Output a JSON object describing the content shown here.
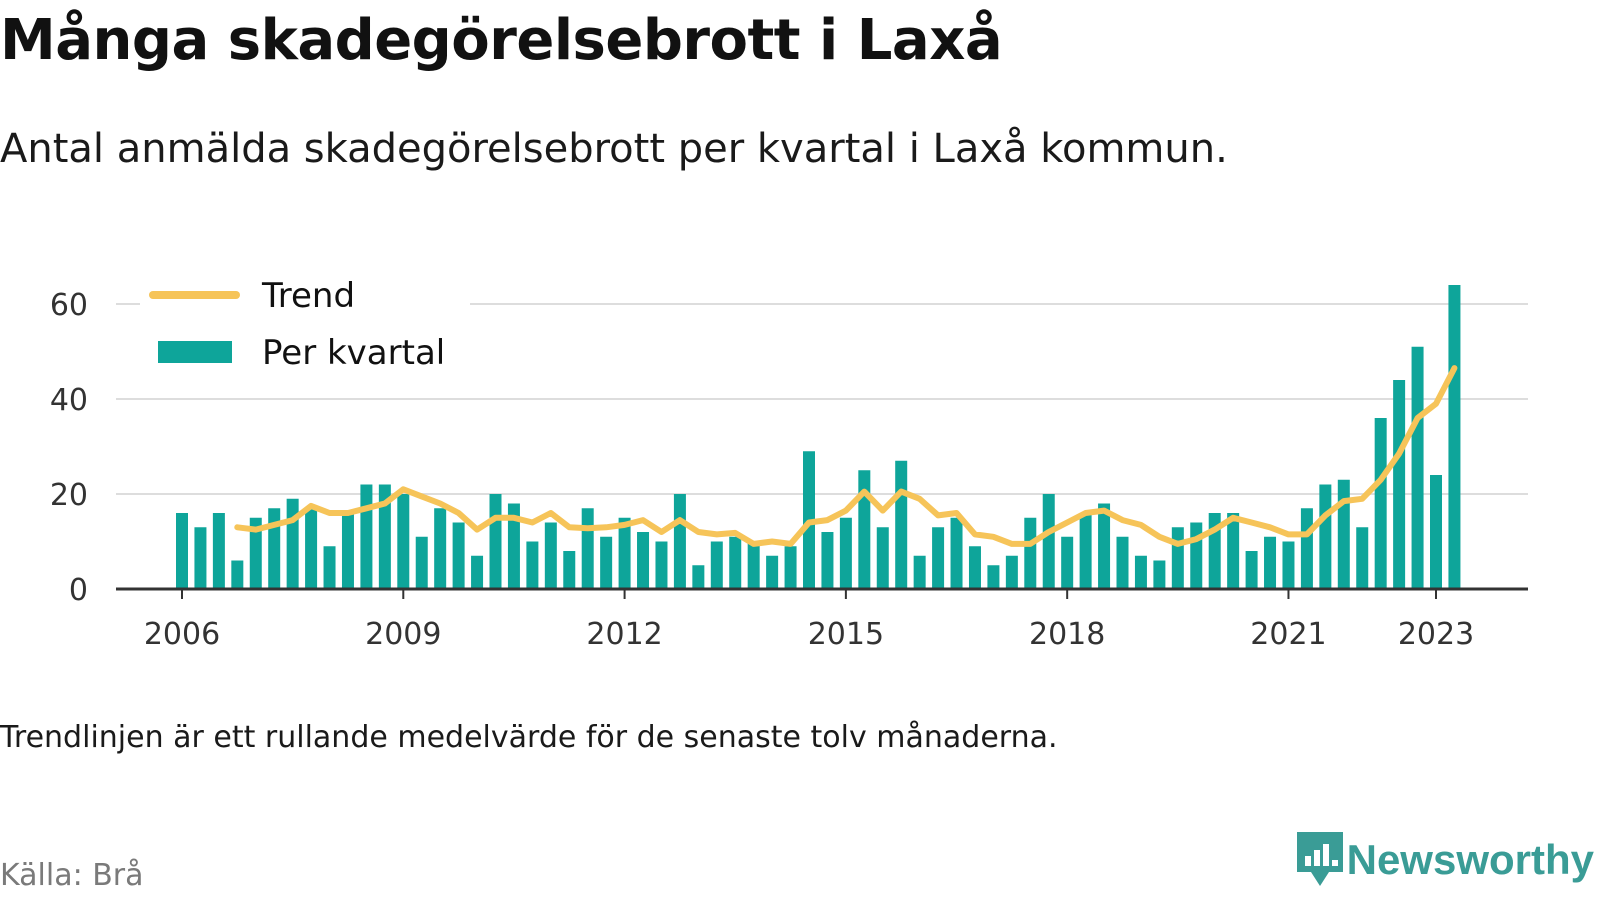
{
  "title": "Många skadegörelsebrott i Laxå",
  "subtitle": "Antal anmälda skadegörelsebrott per kvartal i Laxå kommun.",
  "note": "Trendlinjen är ett rullande medelvärde för de senaste tolv månaderna.",
  "source": "Källa: Brå",
  "brand": {
    "name": "Newsworthy",
    "icon": "newsworthy-logo-icon",
    "color": "#3a9c96"
  },
  "colors": {
    "bars": "#0ea59a",
    "trend": "#f6c459",
    "grid": "#dddddd",
    "axis": "#333333"
  },
  "chart_data": {
    "type": "bar",
    "x_range": [
      2005.6,
      2024.2
    ],
    "ylim": [
      0,
      63
    ],
    "y_ticks": [
      0,
      20,
      40,
      60
    ],
    "x_ticks": [
      {
        "label": "2006",
        "x": 2006.0
      },
      {
        "label": "2009",
        "x": 2009.0
      },
      {
        "label": "2012",
        "x": 2012.0
      },
      {
        "label": "2015",
        "x": 2015.0
      },
      {
        "label": "2018",
        "x": 2018.0
      },
      {
        "label": "2021",
        "x": 2021.0
      },
      {
        "label": "2023",
        "x": 2023.0
      }
    ],
    "grid": true,
    "legend_position": "top-left",
    "legend": [
      "Trend",
      "Per kvartal"
    ],
    "series": [
      {
        "name": "Per kvartal",
        "type": "bar",
        "start": 2006.0,
        "step": 0.25,
        "values": [
          16,
          13,
          16,
          6,
          15,
          17,
          19,
          17,
          9,
          16,
          22,
          22,
          20,
          11,
          17,
          14,
          7,
          20,
          18,
          10,
          14,
          8,
          17,
          11,
          15,
          12,
          10,
          20,
          5,
          10,
          11,
          10,
          7,
          9,
          29,
          12,
          15,
          25,
          13,
          27,
          7,
          13,
          15,
          9,
          5,
          7,
          15,
          20,
          11,
          16,
          18,
          11,
          7,
          6,
          13,
          14,
          16,
          16,
          8,
          11,
          10,
          17,
          22,
          23,
          13,
          36,
          44,
          51,
          24,
          64
        ]
      },
      {
        "name": "Trend",
        "type": "line",
        "start": 2006.75,
        "step": 0.25,
        "values": [
          13,
          12.5,
          13.5,
          14.5,
          17.5,
          16,
          16,
          17,
          18,
          21,
          19.5,
          18,
          16,
          12.5,
          15,
          15,
          14,
          16,
          13,
          12.8,
          13,
          13.5,
          14.5,
          12,
          14.5,
          12,
          11.5,
          11.8,
          9.5,
          10,
          9.5,
          14,
          14.5,
          16.5,
          20.5,
          16.5,
          20.5,
          19,
          15.5,
          16,
          11.5,
          11,
          9.5,
          9.5,
          12,
          14,
          16,
          16.5,
          14.5,
          13.5,
          11,
          9.5,
          10.5,
          12.5,
          15,
          14,
          13,
          11.5,
          11.5,
          15.5,
          18.5,
          19,
          23,
          28.5,
          36,
          39,
          46.5
        ]
      }
    ]
  }
}
